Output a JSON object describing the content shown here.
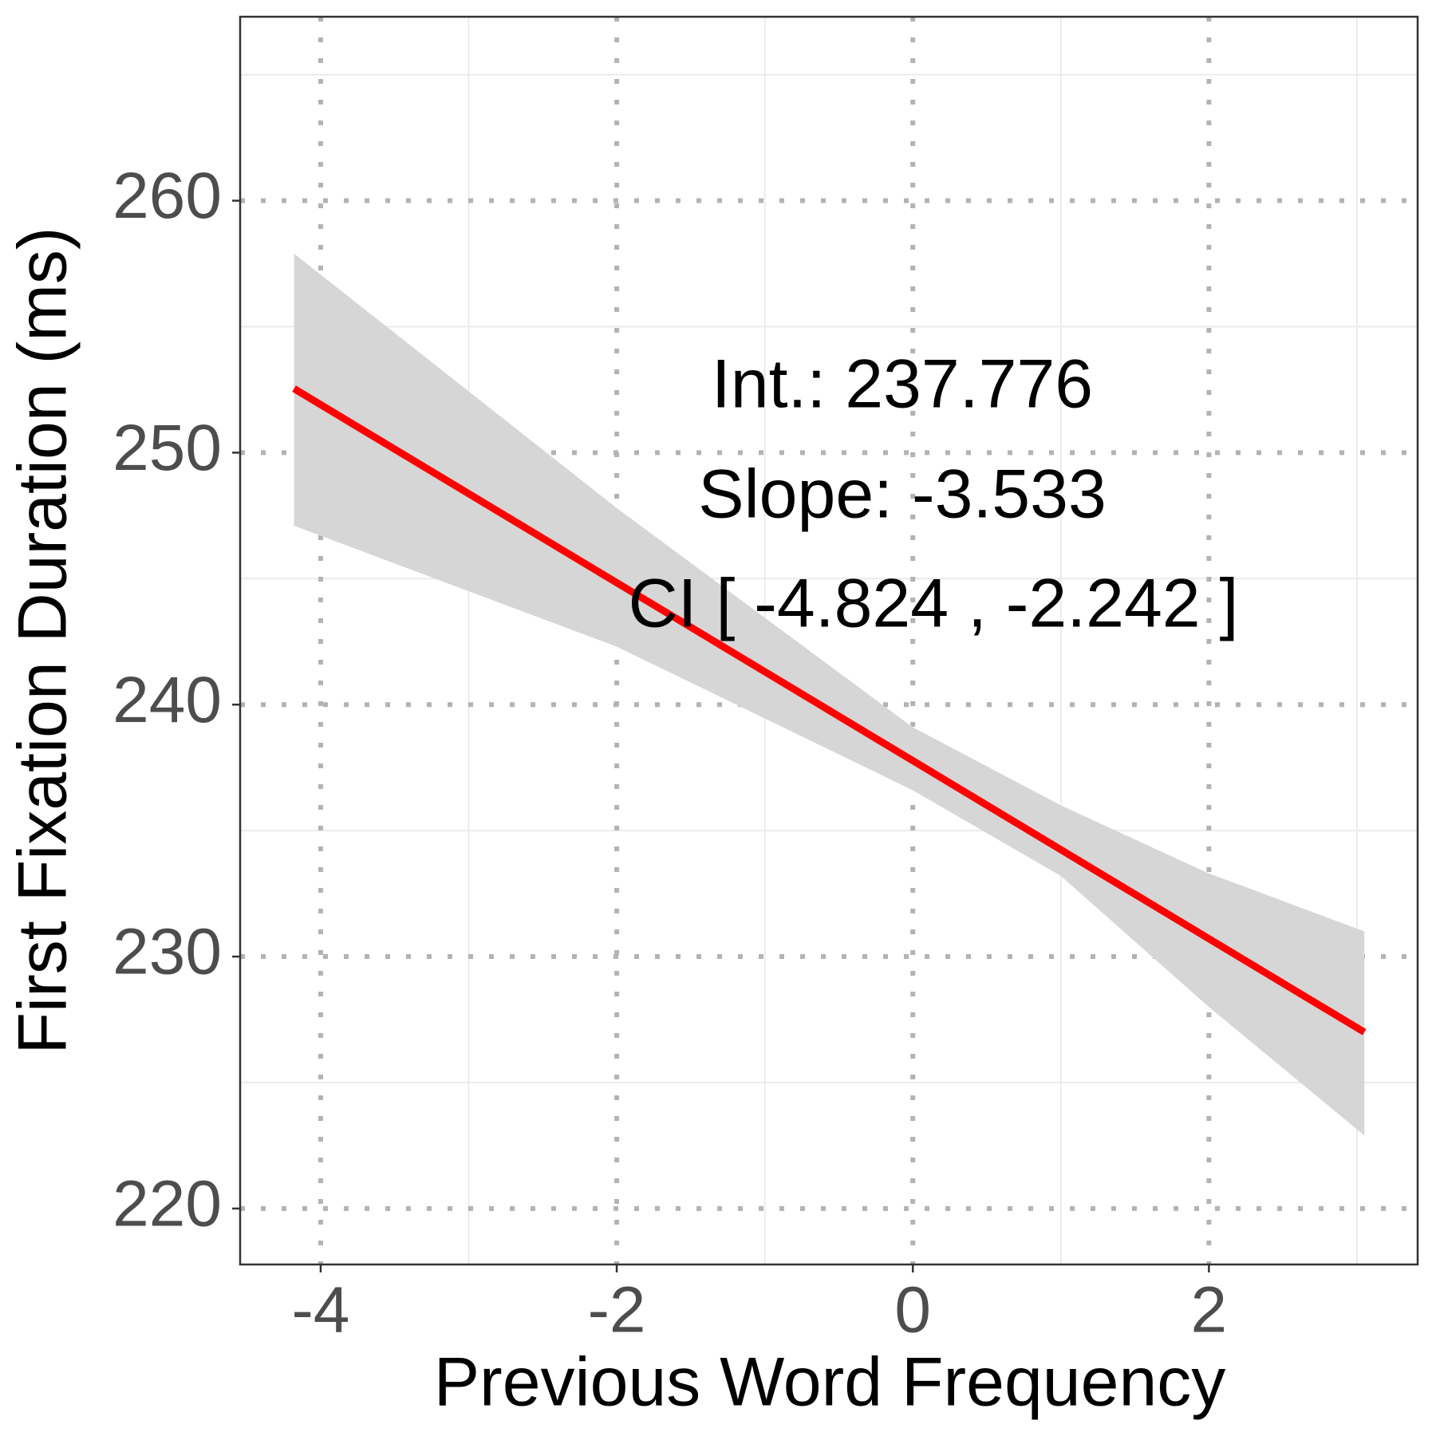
{
  "chart_data": {
    "type": "line",
    "x_label": "Previous Word Frequency",
    "y_label": "First Fixation Duration (ms)",
    "annotations": [
      "Int.: 237.776",
      "Slope: -3.533",
      "CI [ -4.824 , -2.242 ]"
    ],
    "xlim": [
      -4.544,
      3.41
    ],
    "xticks": [
      -4,
      -2,
      0,
      2
    ],
    "x_minor_ticks": [
      -3,
      -1,
      1,
      3
    ],
    "ylim": [
      217.78,
      267.3
    ],
    "yticks": [
      220,
      230,
      240,
      250,
      260
    ],
    "y_minor_ticks": [
      225,
      235,
      245,
      255,
      265
    ],
    "grid": true,
    "series": [
      {
        "color": "#ff0000",
        "x": [
          -4.18,
          3.05
        ],
        "values": [
          252.54,
          227.0
        ]
      }
    ],
    "band": {
      "color": "#d6d6d6",
      "x": [
        -4.18,
        -2,
        0,
        1,
        2,
        3.05
      ],
      "upper": [
        257.9,
        247.8,
        239.1,
        236.0,
        233.3,
        231.0
      ],
      "lower": [
        247.1,
        242.3,
        236.6,
        233.2,
        228.0,
        222.9
      ]
    }
  }
}
